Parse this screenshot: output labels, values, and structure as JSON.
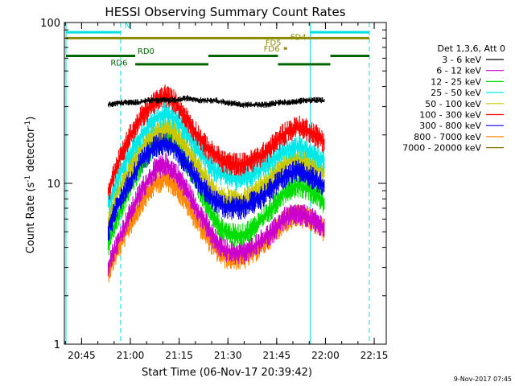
{
  "chart_data": {
    "type": "line",
    "title": "HESSI Observing Summary Count Rates",
    "xlabel": "Start Time (06-Nov-17 20:39:42)",
    "ylabel_main": "Count Rate (s",
    "ylabel_sup1": "-1",
    "ylabel_mid": " detector",
    "ylabel_sup2": "-1",
    "ylabel_end": ")",
    "date_stamp": "9-Nov-2017 07:45",
    "yscale": "log",
    "ylim": [
      1,
      100
    ],
    "xlim_minutes": [
      0,
      99
    ],
    "x_ticks": [
      {
        "label": "20:45",
        "minute": 5.3
      },
      {
        "label": "21:00",
        "minute": 20.3
      },
      {
        "label": "21:15",
        "minute": 35.3
      },
      {
        "label": "21:30",
        "minute": 50.3
      },
      {
        "label": "21:45",
        "minute": 65.3
      },
      {
        "label": "22:00",
        "minute": 80.3
      },
      {
        "label": "22:15",
        "minute": 95.3
      }
    ],
    "y_ticks": [
      {
        "label": "1",
        "value": 1
      },
      {
        "label": "10",
        "value": 10
      },
      {
        "label": "100",
        "value": 100
      }
    ],
    "legend_title": "Det 1,3,6, Att 0",
    "series": [
      {
        "name": "3 - 6 keV",
        "color": "#000000",
        "points": [
          [
            13.5,
            31
          ],
          [
            18,
            32
          ],
          [
            22,
            32
          ],
          [
            26,
            33
          ],
          [
            30,
            33
          ],
          [
            34,
            33
          ],
          [
            38,
            34
          ],
          [
            42,
            33
          ],
          [
            46,
            33
          ],
          [
            50,
            32
          ],
          [
            54,
            31
          ],
          [
            58,
            31
          ],
          [
            62,
            31
          ],
          [
            66,
            32
          ],
          [
            70,
            32
          ],
          [
            74,
            33
          ],
          [
            78,
            33
          ],
          [
            80,
            33
          ]
        ]
      },
      {
        "name": "6 - 12 keV",
        "color": "#cc00cc",
        "points": [
          [
            13.5,
            3.2
          ],
          [
            16,
            4.2
          ],
          [
            20,
            6.5
          ],
          [
            24,
            9.5
          ],
          [
            28,
            12.5
          ],
          [
            31,
            13.5
          ],
          [
            34,
            12
          ],
          [
            37,
            9.8
          ],
          [
            40,
            7.6
          ],
          [
            43,
            6.0
          ],
          [
            46,
            4.6
          ],
          [
            49,
            4.0
          ],
          [
            52,
            3.8
          ],
          [
            55,
            3.8
          ],
          [
            58,
            4.1
          ],
          [
            61,
            4.6
          ],
          [
            64,
            5.1
          ],
          [
            67,
            6.1
          ],
          [
            69.5,
            6.4
          ],
          [
            72,
            6.6
          ],
          [
            75,
            6.3
          ],
          [
            78,
            5.8
          ],
          [
            80,
            5.4
          ]
        ]
      },
      {
        "name": "12 - 25 keV",
        "color": "#00dd00",
        "points": [
          [
            13.5,
            4.2
          ],
          [
            16,
            6
          ],
          [
            20,
            9.5
          ],
          [
            24,
            14
          ],
          [
            28,
            18
          ],
          [
            31,
            19.5
          ],
          [
            34,
            18
          ],
          [
            37,
            14.5
          ],
          [
            40,
            11
          ],
          [
            43,
            8.2
          ],
          [
            46,
            6.2
          ],
          [
            49,
            5.2
          ],
          [
            52,
            4.9
          ],
          [
            55,
            4.9
          ],
          [
            58,
            5.4
          ],
          [
            61,
            6.2
          ],
          [
            64,
            7.2
          ],
          [
            67,
            8.8
          ],
          [
            69.5,
            9.6
          ],
          [
            72,
            10
          ],
          [
            75,
            9.5
          ],
          [
            78,
            8.6
          ],
          [
            80,
            7.8
          ]
        ]
      },
      {
        "name": "25 - 50 keV",
        "color": "#00e8e8",
        "points": [
          [
            13.5,
            7.5
          ],
          [
            16,
            10.5
          ],
          [
            20,
            15.5
          ],
          [
            24,
            21
          ],
          [
            28,
            26
          ],
          [
            31,
            28
          ],
          [
            34,
            26
          ],
          [
            37,
            22
          ],
          [
            40,
            18
          ],
          [
            43,
            15
          ],
          [
            46,
            12.5
          ],
          [
            49,
            11.5
          ],
          [
            52,
            11
          ],
          [
            55,
            11
          ],
          [
            58,
            11.6
          ],
          [
            61,
            12.8
          ],
          [
            64,
            14.2
          ],
          [
            67,
            16
          ],
          [
            69.5,
            17
          ],
          [
            72,
            17.3
          ],
          [
            75,
            16.5
          ],
          [
            78,
            15
          ],
          [
            80,
            14
          ]
        ]
      },
      {
        "name": "50 - 100 keV",
        "color": "#c8c800",
        "points": [
          [
            13.5,
            6
          ],
          [
            16,
            8.5
          ],
          [
            20,
            12.5
          ],
          [
            24,
            17.5
          ],
          [
            28,
            21.5
          ],
          [
            31,
            23
          ],
          [
            34,
            21
          ],
          [
            37,
            17.5
          ],
          [
            40,
            14
          ],
          [
            43,
            11.2
          ],
          [
            46,
            9
          ],
          [
            49,
            8.2
          ],
          [
            52,
            8
          ],
          [
            55,
            8.1
          ],
          [
            58,
            8.7
          ],
          [
            61,
            9.8
          ],
          [
            64,
            11.2
          ],
          [
            67,
            13.2
          ],
          [
            69.5,
            14.3
          ],
          [
            72,
            14.8
          ],
          [
            75,
            14
          ],
          [
            78,
            12.6
          ],
          [
            80,
            11.6
          ]
        ]
      },
      {
        "name": "100 - 300 keV",
        "color": "#ff0000",
        "points": [
          [
            13.5,
            9
          ],
          [
            16,
            13
          ],
          [
            20,
            20
          ],
          [
            24,
            27
          ],
          [
            28,
            33
          ],
          [
            31,
            36
          ],
          [
            34,
            33
          ],
          [
            37,
            27
          ],
          [
            40,
            22
          ],
          [
            43,
            18
          ],
          [
            46,
            15.5
          ],
          [
            49,
            14
          ],
          [
            52,
            13.5
          ],
          [
            55,
            13.5
          ],
          [
            58,
            14.2
          ],
          [
            61,
            15.5
          ],
          [
            64,
            17.5
          ],
          [
            67,
            20.5
          ],
          [
            69.5,
            22
          ],
          [
            72,
            23
          ],
          [
            75,
            22
          ],
          [
            78,
            20
          ],
          [
            80,
            18.5
          ]
        ]
      },
      {
        "name": "300 - 800 keV",
        "color": "#0000ee",
        "points": [
          [
            13.5,
            5.2
          ],
          [
            16,
            7.2
          ],
          [
            20,
            10.5
          ],
          [
            24,
            14.5
          ],
          [
            28,
            17.5
          ],
          [
            31,
            18.5
          ],
          [
            34,
            17
          ],
          [
            37,
            14
          ],
          [
            40,
            11.5
          ],
          [
            43,
            9.5
          ],
          [
            46,
            8
          ],
          [
            49,
            7.4
          ],
          [
            52,
            7.2
          ],
          [
            55,
            7.3
          ],
          [
            58,
            7.8
          ],
          [
            61,
            8.6
          ],
          [
            64,
            9.6
          ],
          [
            67,
            11
          ],
          [
            69.5,
            11.8
          ],
          [
            72,
            12.2
          ],
          [
            75,
            11.6
          ],
          [
            78,
            10.6
          ],
          [
            80,
            9.9
          ]
        ]
      },
      {
        "name": "800 - 7000 keV",
        "color": "#ff8800",
        "points": [
          [
            13.5,
            2.9
          ],
          [
            16,
            3.8
          ],
          [
            20,
            5.6
          ],
          [
            24,
            8
          ],
          [
            28,
            10.3
          ],
          [
            31,
            11
          ],
          [
            34,
            10
          ],
          [
            37,
            8.1
          ],
          [
            40,
            6.4
          ],
          [
            43,
            5.1
          ],
          [
            46,
            4.1
          ],
          [
            49,
            3.6
          ],
          [
            52,
            3.5
          ],
          [
            55,
            3.5
          ],
          [
            58,
            3.8
          ],
          [
            61,
            4.3
          ],
          [
            64,
            4.9
          ],
          [
            67,
            5.8
          ],
          [
            69.5,
            6.2
          ],
          [
            72,
            6.5
          ],
          [
            75,
            6.2
          ],
          [
            78,
            5.6
          ],
          [
            80,
            5.2
          ]
        ]
      },
      {
        "name": "7000 - 20000 keV",
        "color": "#8b7500",
        "points": []
      }
    ],
    "vertical_lines": [
      {
        "minute": 0.5,
        "style": "solid"
      },
      {
        "minute": 17.3,
        "style": "dashed"
      },
      {
        "minute": 75.6,
        "style": "solid"
      },
      {
        "minute": 93.8,
        "style": "dashed"
      }
    ],
    "flag_bars": [
      {
        "color": "#00e0e0",
        "y": 87,
        "segments": [
          [
            0.5,
            17.3
          ],
          [
            75.6,
            93.8
          ]
        ]
      },
      {
        "color": "#8b8b00",
        "y": 80,
        "segments": [
          [
            0.5,
            93.8
          ]
        ]
      },
      {
        "color": "#8b8b00",
        "y": 69,
        "segments": [
          [
            67.5,
            68.5
          ]
        ]
      },
      {
        "color": "#006400",
        "y": 62,
        "segments": [
          [
            0.5,
            21.8
          ],
          [
            44.3,
            65.7
          ],
          [
            81.8,
            93.8
          ]
        ]
      },
      {
        "color": "#006400",
        "y": 55,
        "segments": [
          [
            21.8,
            44.3
          ],
          [
            65.7,
            81.8
          ]
        ]
      }
    ],
    "flag_labels": [
      {
        "text": "N",
        "color": "#00e0e0",
        "minute": 18.5,
        "y": 92
      },
      {
        "text": "FD4",
        "color": "#8b8b00",
        "minute": 69.5,
        "y": 78
      },
      {
        "text": "FD5",
        "color": "#8b8b00",
        "minute": 61.8,
        "y": 72
      },
      {
        "text": "FD6",
        "color": "#8b8b00",
        "minute": 61.3,
        "y": 66
      },
      {
        "text": "RD0",
        "color": "#006400",
        "minute": 22.5,
        "y": 64
      },
      {
        "text": "RD6",
        "color": "#006400",
        "minute": 14.2,
        "y": 54
      }
    ]
  }
}
